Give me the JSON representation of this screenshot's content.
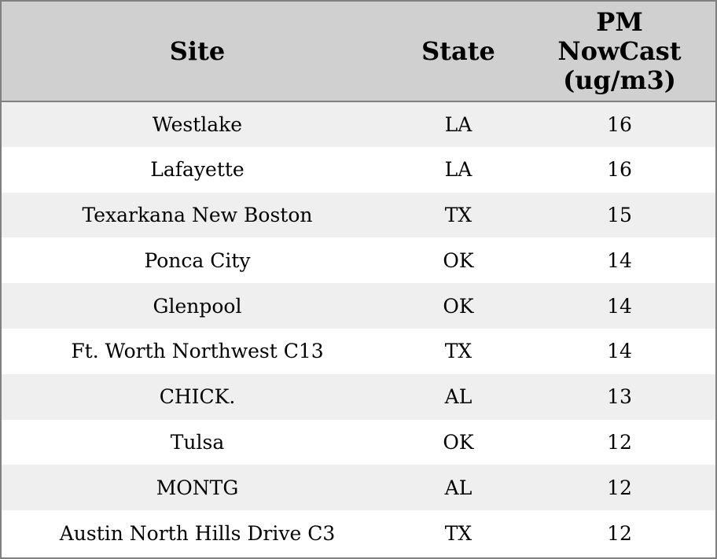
{
  "table": {
    "columns": [
      "Site",
      "State",
      "PM NowCast (ug/m3)"
    ],
    "rows": [
      [
        "Westlake",
        "LA",
        16
      ],
      [
        "Lafayette",
        "LA",
        16
      ],
      [
        "Texarkana New Boston",
        "TX",
        15
      ],
      [
        "Ponca City",
        "OK",
        14
      ],
      [
        "Glenpool",
        "OK",
        14
      ],
      [
        "Ft. Worth Northwest C13",
        "TX",
        14
      ],
      [
        "CHICK.",
        "AL",
        13
      ],
      [
        "Tulsa",
        "OK",
        12
      ],
      [
        "MONTG",
        "AL",
        12
      ],
      [
        "Austin North Hills Drive C3",
        "TX",
        12
      ]
    ]
  }
}
